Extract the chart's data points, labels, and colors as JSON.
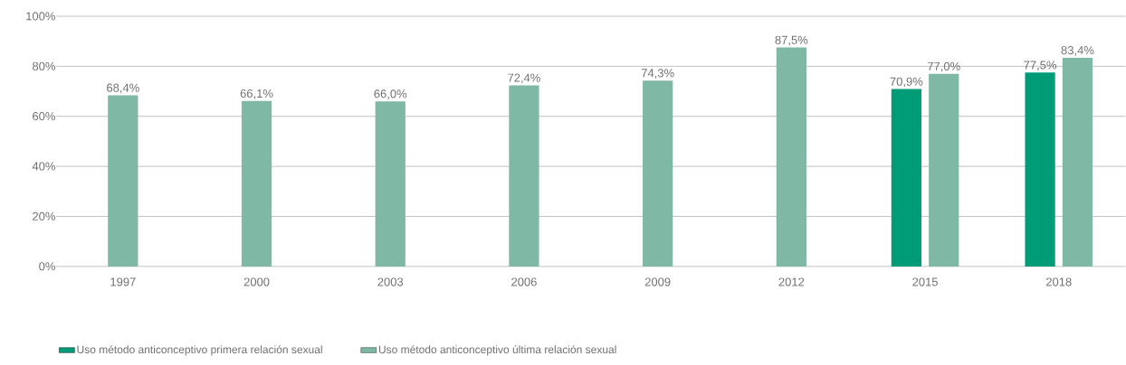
{
  "chart_data": {
    "type": "bar",
    "categories": [
      "1997",
      "2000",
      "2003",
      "2006",
      "2009",
      "2012",
      "2015",
      "2018"
    ],
    "series": [
      {
        "name": "Uso método anticonceptivo primera relación sexual",
        "color": "#009b77",
        "values": [
          null,
          null,
          null,
          null,
          null,
          null,
          70.9,
          77.5
        ],
        "value_labels": [
          null,
          null,
          null,
          null,
          null,
          null,
          "70,9%",
          "77,5%"
        ]
      },
      {
        "name": "Uso método anticonceptivo última relación sexual",
        "color": "#7fb9a5",
        "values": [
          68.4,
          66.1,
          66.0,
          72.4,
          74.3,
          87.5,
          77.0,
          83.4
        ],
        "value_labels": [
          "68,4%",
          "66,1%",
          "66,0%",
          "72,4%",
          "74,3%",
          "87,5%",
          "77,0%",
          "83,4%"
        ]
      }
    ],
    "ylim": [
      0,
      100
    ],
    "yticks": [
      {
        "value": 0,
        "label": "0%"
      },
      {
        "value": 20,
        "label": "20%"
      },
      {
        "value": 40,
        "label": "40%"
      },
      {
        "value": 60,
        "label": "60%"
      },
      {
        "value": 80,
        "label": "80%"
      },
      {
        "value": 100,
        "label": "100%"
      }
    ],
    "grid": "y",
    "legend": "bottom left"
  }
}
